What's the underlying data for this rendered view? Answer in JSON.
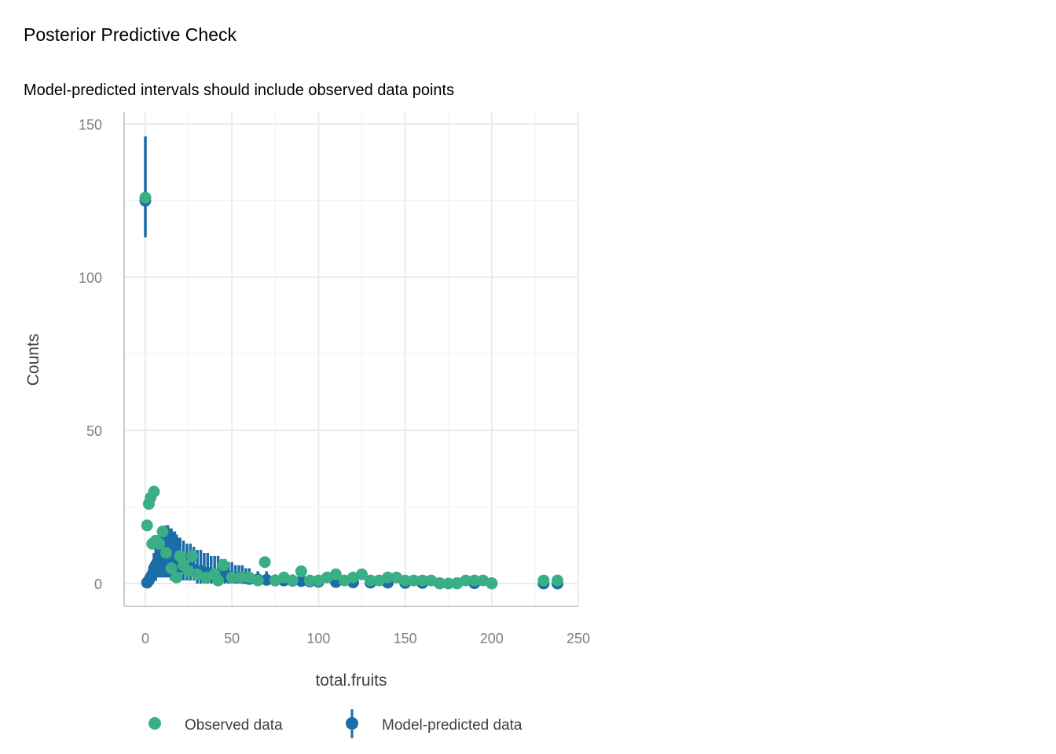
{
  "chart_data": {
    "type": "scatter",
    "title": "Posterior Predictive Check",
    "subtitle": "Model-predicted intervals should include observed data points",
    "xlabel": "total.fruits",
    "ylabel": "Counts",
    "xlim": [
      -12,
      250
    ],
    "ylim": [
      -7,
      153
    ],
    "xticks": [
      0,
      50,
      100,
      150,
      200,
      250
    ],
    "xtick_labels": [
      "0",
      "50",
      "100",
      "150",
      "200",
      "250"
    ],
    "yticks": [
      0,
      50,
      100,
      150
    ],
    "ytick_labels": [
      "0",
      "50",
      "100",
      "150"
    ],
    "grid": true,
    "legend_position": "bottom",
    "colors": {
      "observed": "#3aaf85",
      "predicted": "#1b6ca8",
      "grid": "#ebebeb",
      "axis": "#cccccc"
    },
    "legend": [
      {
        "name": "Observed data",
        "icon": "dot"
      },
      {
        "name": "Model-predicted data",
        "icon": "pointrange"
      }
    ],
    "observed": {
      "name": "Observed data",
      "x": [
        0,
        1,
        2,
        3,
        5,
        4,
        6,
        8,
        10,
        12,
        15,
        18,
        20,
        22,
        25,
        27,
        30,
        35,
        40,
        42,
        45,
        50,
        55,
        60,
        65,
        69,
        75,
        80,
        85,
        90,
        95,
        100,
        105,
        110,
        115,
        120,
        125,
        130,
        135,
        140,
        145,
        150,
        155,
        160,
        165,
        170,
        175,
        180,
        185,
        190,
        195,
        200,
        230,
        238
      ],
      "y": [
        126,
        19,
        26,
        28,
        30,
        13,
        14,
        13,
        17,
        10,
        5,
        2,
        9,
        6,
        4,
        9,
        3,
        2,
        3,
        1,
        6,
        2,
        2,
        2,
        1,
        7,
        1,
        2,
        1,
        4,
        1,
        1,
        2,
        3,
        1,
        2,
        3,
        1,
        1,
        2,
        2,
        1,
        1,
        1,
        1,
        0,
        0,
        0,
        1,
        1,
        1,
        0,
        1,
        1
      ]
    },
    "predicted": {
      "name": "Model-predicted data",
      "x": [
        0,
        1,
        2,
        3,
        4,
        5,
        6,
        7,
        8,
        9,
        10,
        11,
        12,
        13,
        14,
        15,
        16,
        17,
        18,
        19,
        20,
        22,
        24,
        26,
        28,
        30,
        32,
        34,
        36,
        38,
        40,
        42,
        44,
        46,
        48,
        50,
        52,
        54,
        56,
        58,
        60,
        65,
        70,
        75,
        80,
        85,
        90,
        95,
        100,
        110,
        120,
        130,
        140,
        150,
        160,
        170,
        180,
        190,
        200,
        230,
        238
      ],
      "mean": [
        125,
        0.3,
        1,
        2,
        3,
        5,
        6,
        7,
        8,
        8,
        8,
        8,
        8,
        8,
        7.5,
        7,
        7,
        7,
        6.5,
        6,
        6,
        5.5,
        5,
        5,
        4.5,
        4,
        4,
        3.5,
        3.5,
        3,
        3,
        3,
        2.5,
        2.5,
        2.2,
        2,
        2,
        2,
        1.8,
        1.8,
        1.5,
        1.3,
        1.2,
        1,
        1,
        0.9,
        0.8,
        0.7,
        0.6,
        0.5,
        0.4,
        0.3,
        0.3,
        0.2,
        0.2,
        0.1,
        0.1,
        0.1,
        0.1,
        0,
        0
      ],
      "lower": [
        113,
        0,
        0,
        0,
        0,
        1,
        1,
        2,
        2,
        2,
        2,
        2,
        2,
        2,
        2,
        1,
        1,
        1,
        1,
        1,
        1,
        1,
        1,
        1,
        1,
        0,
        0,
        0,
        0,
        0,
        0,
        0,
        0,
        0,
        0,
        0,
        0,
        0,
        0,
        0,
        0,
        0,
        0,
        0,
        0,
        0,
        0,
        0,
        0,
        0,
        0,
        0,
        0,
        0,
        0,
        0,
        0,
        0,
        0,
        0,
        0
      ],
      "upper": [
        146,
        1,
        3,
        5,
        7,
        10,
        12,
        14,
        16,
        17,
        18,
        18,
        19,
        19,
        18,
        18,
        17,
        17,
        16,
        15,
        15,
        14,
        13,
        13,
        12,
        11,
        11,
        10,
        10,
        9,
        9,
        9,
        8,
        8,
        7,
        7,
        6,
        6,
        6,
        5,
        5,
        4,
        4,
        3,
        3,
        3,
        3,
        2,
        2,
        2,
        2,
        1,
        1,
        1,
        1,
        1,
        1,
        1,
        1,
        0,
        0
      ]
    }
  }
}
